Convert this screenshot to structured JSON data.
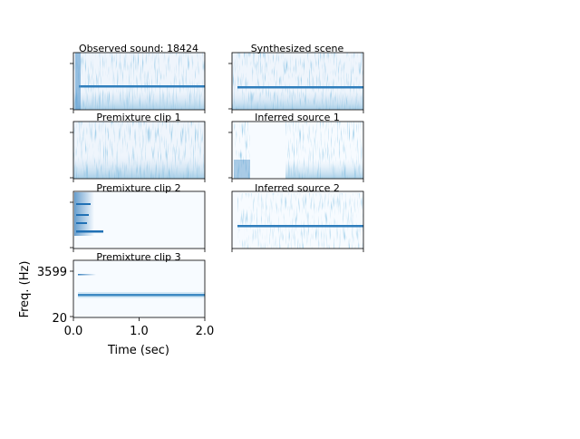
{
  "chart_data": {
    "type": "heatmap",
    "colormap": "Blues",
    "panels": [
      {
        "id": "observed",
        "title": "Observed sound: 18424"
      },
      {
        "id": "synth",
        "title": "Synthesized scene"
      },
      {
        "id": "pre1",
        "title": "Premixture clip 1"
      },
      {
        "id": "inf1",
        "title": "Inferred source 1"
      },
      {
        "id": "pre2",
        "title": "Premixture clip 2"
      },
      {
        "id": "inf2",
        "title": "Inferred source 2"
      },
      {
        "id": "pre3",
        "title": "Premixture clip 3"
      }
    ],
    "xlabel": "Time (sec)",
    "ylabel": "Freq. (Hz)",
    "xticks": [
      "0.0",
      "1.0",
      "2.0"
    ],
    "yticks": [
      "3599",
      "20"
    ],
    "xlim": [
      0,
      2
    ]
  }
}
